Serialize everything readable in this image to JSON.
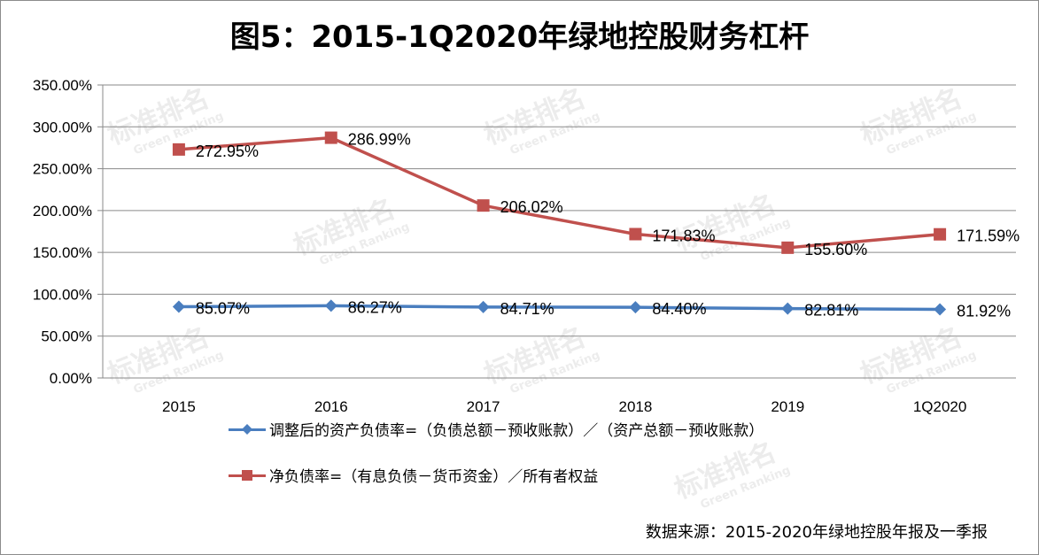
{
  "chart_data": {
    "type": "line",
    "title": "图5：2015-1Q2020年绿地控股财务杠杆",
    "categories": [
      "2015",
      "2016",
      "2017",
      "2018",
      "2019",
      "1Q2020"
    ],
    "y_ticks": [
      "0.00%",
      "50.00%",
      "100.00%",
      "150.00%",
      "200.00%",
      "250.00%",
      "300.00%",
      "350.00%"
    ],
    "ylim": [
      0,
      350
    ],
    "grid": true,
    "legend_position": "bottom",
    "series": [
      {
        "name": "调整后的资产负债率=（负债总额－预收账款）／（资产总额－预收账款）",
        "color": "#4a7ebf",
        "marker": "diamond",
        "values": [
          85.07,
          86.27,
          84.71,
          84.4,
          82.81,
          81.92
        ],
        "labels": [
          "85.07%",
          "86.27%",
          "84.71%",
          "84.40%",
          "82.81%",
          "81.92%"
        ]
      },
      {
        "name": "净负债率=（有息负债－货币资金）／所有者权益",
        "color": "#c0504d",
        "marker": "square",
        "values": [
          272.95,
          286.99,
          206.02,
          171.83,
          155.6,
          171.59
        ],
        "labels": [
          "272.95%",
          "286.99%",
          "206.02%",
          "171.83%",
          "155.60%",
          "171.59%"
        ]
      }
    ]
  },
  "source": "数据来源：2015-2020年绿地控股年报及一季报",
  "watermark": {
    "text": "标准排名",
    "sub": "Green Ranking"
  }
}
